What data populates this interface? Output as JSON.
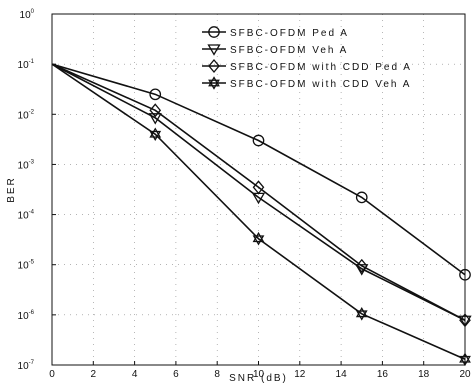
{
  "chart_data": {
    "type": "line",
    "title": "",
    "xlabel": "SNR (dB)",
    "ylabel": "BER",
    "xlim": [
      0,
      20
    ],
    "ylim": [
      1e-07,
      1
    ],
    "yscale": "log",
    "grid": "dotted",
    "legend_position": "top-right",
    "x_ticks": [
      "0",
      "2",
      "4",
      "6",
      "8",
      "10",
      "12",
      "14",
      "16",
      "18",
      "20"
    ],
    "y_ticks": [
      {
        "base": "10",
        "exp": "0"
      },
      {
        "base": "10",
        "exp": "-1"
      },
      {
        "base": "10",
        "exp": "-2"
      },
      {
        "base": "10",
        "exp": "-3"
      },
      {
        "base": "10",
        "exp": "-4"
      },
      {
        "base": "10",
        "exp": "-5"
      },
      {
        "base": "10",
        "exp": "-6"
      },
      {
        "base": "10",
        "exp": "-7"
      }
    ],
    "x": [
      0,
      5,
      10,
      15,
      20
    ],
    "series": [
      {
        "name": "SFBC-OFDM Ped A",
        "marker": "circle",
        "values": [
          0.1,
          0.025,
          0.003,
          0.00022,
          6.3e-06
        ]
      },
      {
        "name": "SFBC-OFDM Veh A",
        "marker": "triangle-down",
        "values": [
          0.1,
          0.0085,
          0.00022,
          8.3e-06,
          7.8e-07
        ]
      },
      {
        "name": "SFBC-OFDM with CDD Ped A",
        "marker": "diamond",
        "values": [
          0.1,
          0.012,
          0.00035,
          9.5e-06,
          7.8e-07
        ]
      },
      {
        "name": "SFBC-OFDM with CDD Veh A",
        "marker": "hexagram",
        "values": [
          0.1,
          0.004,
          3.3e-05,
          1.05e-06,
          1.3e-07
        ]
      }
    ],
    "colors": {
      "line": "#111111",
      "grid": "#888888",
      "background": "#ffffff"
    }
  }
}
